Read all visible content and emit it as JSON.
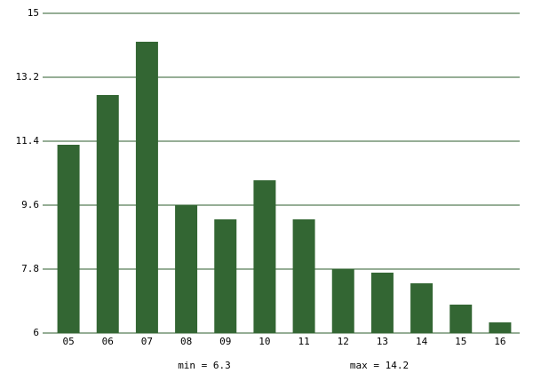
{
  "chart_data": {
    "type": "bar",
    "categories": [
      "05",
      "06",
      "07",
      "08",
      "09",
      "10",
      "11",
      "12",
      "13",
      "14",
      "15",
      "16"
    ],
    "values": [
      11.3,
      12.7,
      14.2,
      9.6,
      9.2,
      10.3,
      9.2,
      7.8,
      7.7,
      7.4,
      6.8,
      6.3
    ],
    "color": "#336633",
    "ylim": [
      6,
      15
    ],
    "yticks": [
      6,
      7.8,
      9.6,
      11.4,
      13.2,
      15
    ],
    "grid": true,
    "annotations": [
      "min = 6.3",
      "max = 14.2"
    ]
  }
}
